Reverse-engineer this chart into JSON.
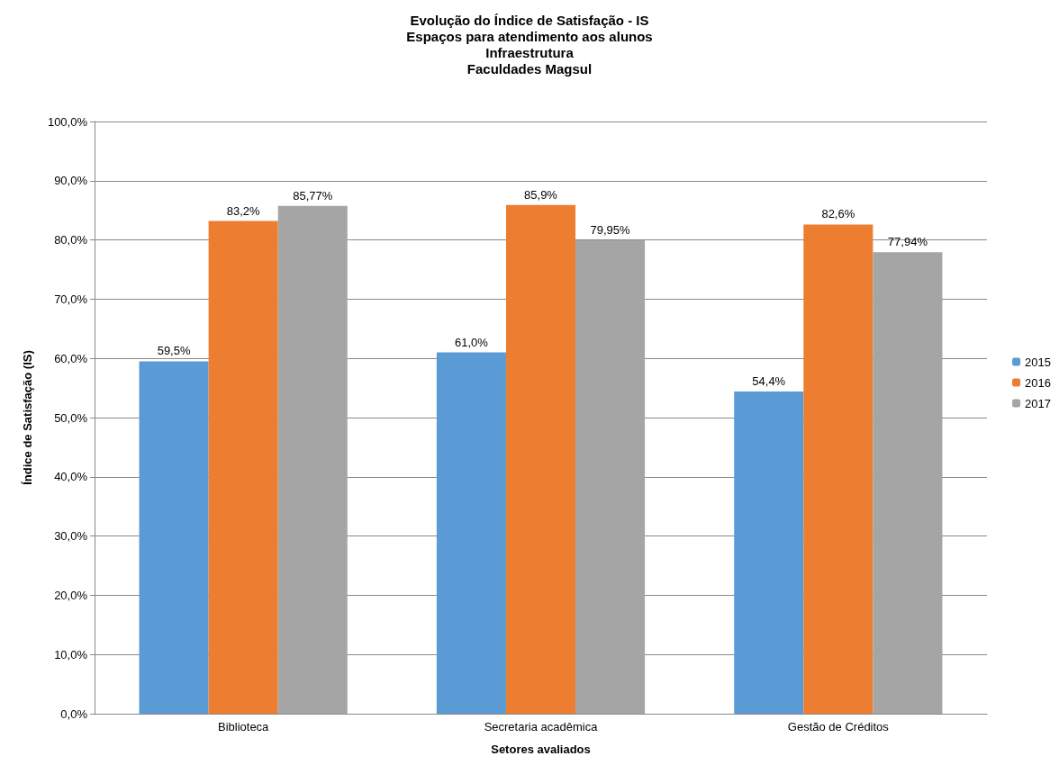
{
  "chart_data": {
    "type": "bar",
    "title": "Evolução do Índice de Satisfação - IS\nEspaços para atendimento aos alunos\nInfraestrutura\nFaculdades Magsul",
    "xlabel": "Setores avaliados",
    "ylabel": "Índice de Satisfação (IS)",
    "categories": [
      "Biblioteca",
      "Secretaria acadêmica",
      "Gestão de Créditos"
    ],
    "series": [
      {
        "name": "2015",
        "color": "#5b9bd5",
        "values": [
          59.5,
          61.0,
          54.4
        ],
        "value_labels": [
          "59,5%",
          "61,0%",
          "54,4%"
        ]
      },
      {
        "name": "2016",
        "color": "#ed7d31",
        "values": [
          83.2,
          85.9,
          82.6
        ],
        "value_labels": [
          "83,2%",
          "85,9%",
          "82,6%"
        ]
      },
      {
        "name": "2017",
        "color": "#a5a5a5",
        "values": [
          85.77,
          79.95,
          77.94
        ],
        "value_labels": [
          "85,77%",
          "79,95%",
          "77,94%"
        ]
      }
    ],
    "ylim": [
      0,
      100
    ],
    "yticks": [
      {
        "value": 0,
        "label": "0,0%"
      },
      {
        "value": 10,
        "label": "10,0%"
      },
      {
        "value": 20,
        "label": "20,0%"
      },
      {
        "value": 30,
        "label": "30,0%"
      },
      {
        "value": 40,
        "label": "40,0%"
      },
      {
        "value": 50,
        "label": "50,0%"
      },
      {
        "value": 60,
        "label": "60,0%"
      },
      {
        "value": 70,
        "label": "70,0%"
      },
      {
        "value": 80,
        "label": "80,0%"
      },
      {
        "value": 90,
        "label": "90,0%"
      },
      {
        "value": 100,
        "label": "100,0%"
      }
    ],
    "grid": "y",
    "legend": "right"
  }
}
